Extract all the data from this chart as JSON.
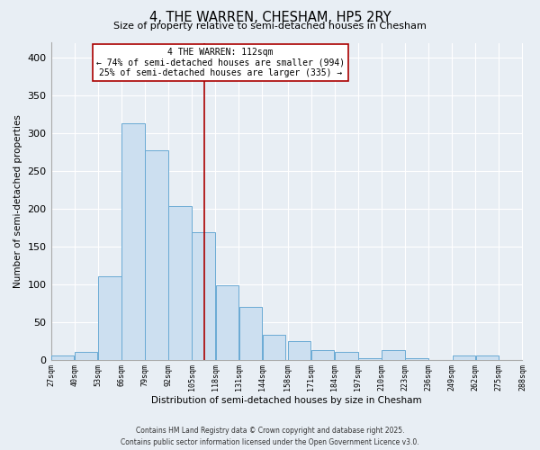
{
  "title": "4, THE WARREN, CHESHAM, HP5 2RY",
  "subtitle": "Size of property relative to semi-detached houses in Chesham",
  "xlabel": "Distribution of semi-detached houses by size in Chesham",
  "ylabel": "Number of semi-detached properties",
  "bin_edges": [
    27,
    40,
    53,
    66,
    79,
    92,
    105,
    118,
    131,
    144,
    158,
    171,
    184,
    197,
    210,
    223,
    236,
    249,
    262,
    275,
    288
  ],
  "counts": [
    5,
    10,
    110,
    313,
    277,
    204,
    169,
    98,
    70,
    33,
    25,
    13,
    10,
    2,
    13,
    2,
    0,
    5,
    5,
    0
  ],
  "tick_labels": [
    "27sqm",
    "40sqm",
    "53sqm",
    "66sqm",
    "79sqm",
    "92sqm",
    "105sqm",
    "118sqm",
    "131sqm",
    "144sqm",
    "158sqm",
    "171sqm",
    "184sqm",
    "197sqm",
    "210sqm",
    "223sqm",
    "236sqm",
    "249sqm",
    "262sqm",
    "275sqm",
    "288sqm"
  ],
  "bar_color": "#ccdff0",
  "bar_edge_color": "#6aaad4",
  "vline_x": 112,
  "vline_color": "#aa0000",
  "annotation_title": "4 THE WARREN: 112sqm",
  "annotation_line1": "← 74% of semi-detached houses are smaller (994)",
  "annotation_line2": "25% of semi-detached houses are larger (335) →",
  "annotation_box_facecolor": "#ffffff",
  "annotation_box_edgecolor": "#aa0000",
  "ylim": [
    0,
    420
  ],
  "yticks": [
    0,
    50,
    100,
    150,
    200,
    250,
    300,
    350,
    400
  ],
  "footer1": "Contains HM Land Registry data © Crown copyright and database right 2025.",
  "footer2": "Contains public sector information licensed under the Open Government Licence v3.0.",
  "background_color": "#e8eef4",
  "grid_color": "#ffffff"
}
